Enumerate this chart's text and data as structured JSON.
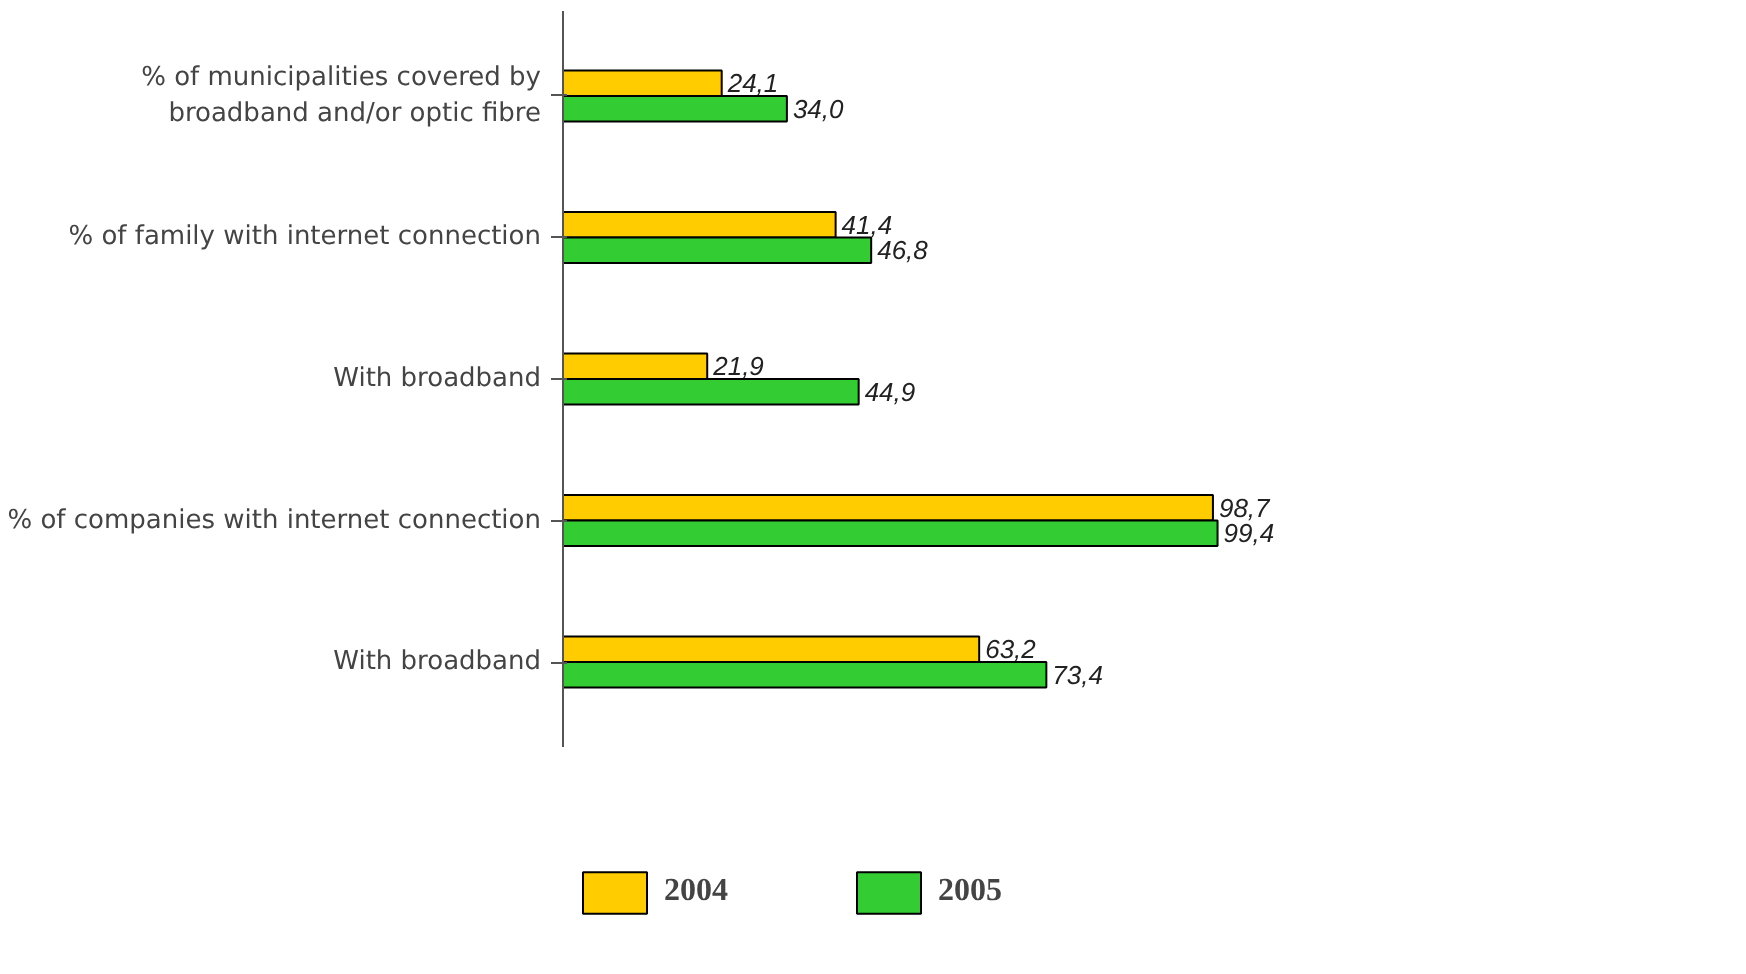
{
  "chart_data": {
    "type": "bar",
    "orientation": "horizontal",
    "categories": [
      "% of municipalities covered by\nbroadband and/or optic fibre",
      "% of family with internet connection",
      "With broadband",
      "% of companies with internet connection",
      "With broadband"
    ],
    "series": [
      {
        "name": "2004",
        "color": "#ffcc00",
        "values": [
          24.1,
          41.4,
          21.9,
          98.7,
          63.2
        ],
        "value_labels": [
          "24,1",
          "41,4",
          "21,9",
          "98,7",
          "63,2"
        ]
      },
      {
        "name": "2005",
        "color": "#33cc33",
        "values": [
          34.0,
          46.8,
          44.9,
          99.4,
          73.4
        ],
        "value_labels": [
          "34,0",
          "46,8",
          "44,9",
          "99,4",
          "73,4"
        ]
      }
    ],
    "legend": "bottom left"
  }
}
